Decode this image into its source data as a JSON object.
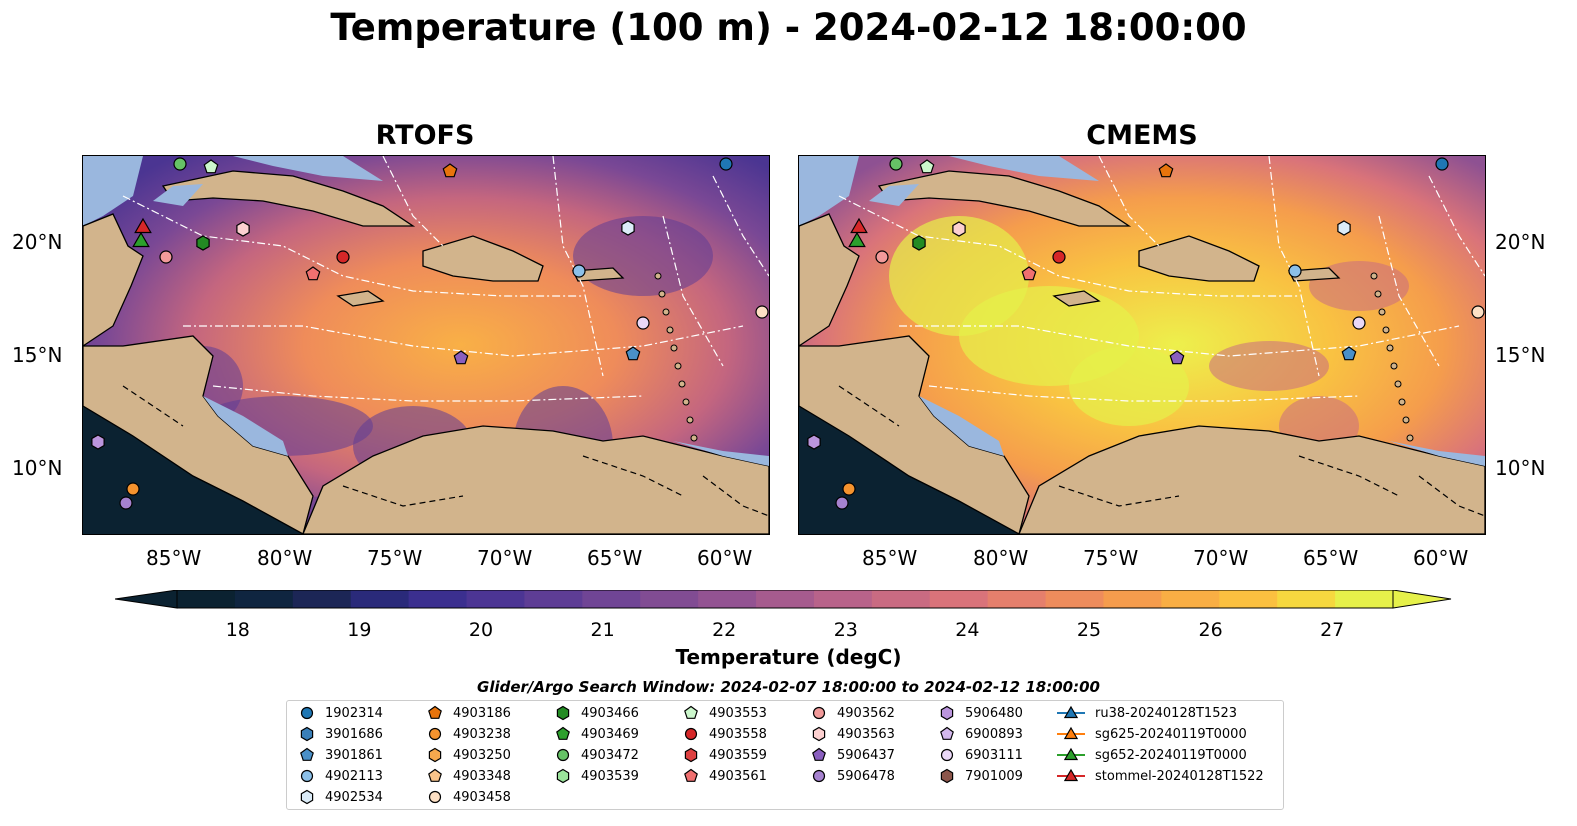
{
  "title": "Temperature (100 m) - 2024-02-12 18:00:00",
  "panels": [
    {
      "title": "RTOFS"
    },
    {
      "title": "CMEMS"
    }
  ],
  "lon_ticks": [
    "85°W",
    "80°W",
    "75°W",
    "70°W",
    "65°W",
    "60°W"
  ],
  "lat_ticks": [
    "20°N",
    "15°N",
    "10°N"
  ],
  "colorbar": {
    "label": "Temperature (degC)",
    "min": 18,
    "max": 27,
    "ticks": [
      "18",
      "19",
      "20",
      "21",
      "22",
      "23",
      "24",
      "25",
      "26",
      "27"
    ],
    "colors": [
      "#0b2231",
      "#0f2540",
      "#1c2656",
      "#2a2a7a",
      "#3b2f8f",
      "#4c3594",
      "#5e3d95",
      "#704595",
      "#814c93",
      "#935392",
      "#a65b8e",
      "#b8638a",
      "#c96b82",
      "#d9737a",
      "#e57f6c",
      "#ee8c5c",
      "#f59c4d",
      "#f9ae44",
      "#fbc040",
      "#f6d83f",
      "#e6f14a"
    ]
  },
  "search_window": "Glider/Argo Search Window: 2024-02-07 18:00:00 to 2024-02-12 18:00:00",
  "colors": {
    "land": "#d2b48c",
    "shallow": "#9ab7de",
    "deep_pacific": "#0b2231"
  },
  "legend": {
    "columns": [
      [
        {
          "label": "1902314",
          "marker": "circle",
          "color": "#1f77b4"
        },
        {
          "label": "3901686",
          "marker": "hexagon",
          "color": "#3a7fb8"
        },
        {
          "label": "3901861",
          "marker": "pentagon",
          "color": "#4a90c8"
        },
        {
          "label": "4902113",
          "marker": "circle",
          "color": "#8cc0e8"
        },
        {
          "label": "4902534",
          "marker": "hexagon",
          "color": "#dcecf8"
        }
      ],
      [
        {
          "label": "4903186",
          "marker": "pentagon",
          "color": "#e8740c"
        },
        {
          "label": "4903238",
          "marker": "circle",
          "color": "#f5932e"
        },
        {
          "label": "4903250",
          "marker": "hexagon",
          "color": "#f7a84d"
        },
        {
          "label": "4903348",
          "marker": "pentagon",
          "color": "#f9c48a"
        },
        {
          "label": "4903458",
          "marker": "circle",
          "color": "#fde0c4"
        }
      ],
      [
        {
          "label": "4903466",
          "marker": "hexagon",
          "color": "#238b23"
        },
        {
          "label": "4903469",
          "marker": "pentagon",
          "color": "#2ea02e"
        },
        {
          "label": "4903472",
          "marker": "circle",
          "color": "#66c266"
        },
        {
          "label": "4903539",
          "marker": "hexagon",
          "color": "#9be39b"
        }
      ],
      [
        {
          "label": "4903553",
          "marker": "pentagon",
          "color": "#ccf7cc"
        },
        {
          "label": "4903558",
          "marker": "circle",
          "color": "#d62728"
        },
        {
          "label": "4903559",
          "marker": "hexagon",
          "color": "#dd4040"
        },
        {
          "label": "4903561",
          "marker": "pentagon",
          "color": "#f07070"
        }
      ],
      [
        {
          "label": "4903562",
          "marker": "circle",
          "color": "#f29a9a"
        },
        {
          "label": "4903563",
          "marker": "hexagon",
          "color": "#fcd0d0"
        },
        {
          "label": "5906437",
          "marker": "pentagon",
          "color": "#8a5fbf"
        },
        {
          "label": "5906478",
          "marker": "circle",
          "color": "#a682cf"
        }
      ],
      [
        {
          "label": "5906480",
          "marker": "hexagon",
          "color": "#bb95dd"
        },
        {
          "label": "6900893",
          "marker": "pentagon",
          "color": "#d3b8ec"
        },
        {
          "label": "6903111",
          "marker": "circle",
          "color": "#ead8f7"
        },
        {
          "label": "7901009",
          "marker": "hexagon",
          "color": "#8c564b"
        }
      ],
      [
        {
          "label": "ru38-20240128T1523",
          "marker": "triangle",
          "color": "#1f77b4"
        },
        {
          "label": "sg625-20240119T0000",
          "marker": "triangle",
          "color": "#ff7f0e"
        },
        {
          "label": "sg652-20240119T0000",
          "marker": "triangle",
          "color": "#2ca02c"
        },
        {
          "label": "stommel-20240128T1522",
          "marker": "triangle",
          "color": "#d62728"
        }
      ]
    ]
  }
}
